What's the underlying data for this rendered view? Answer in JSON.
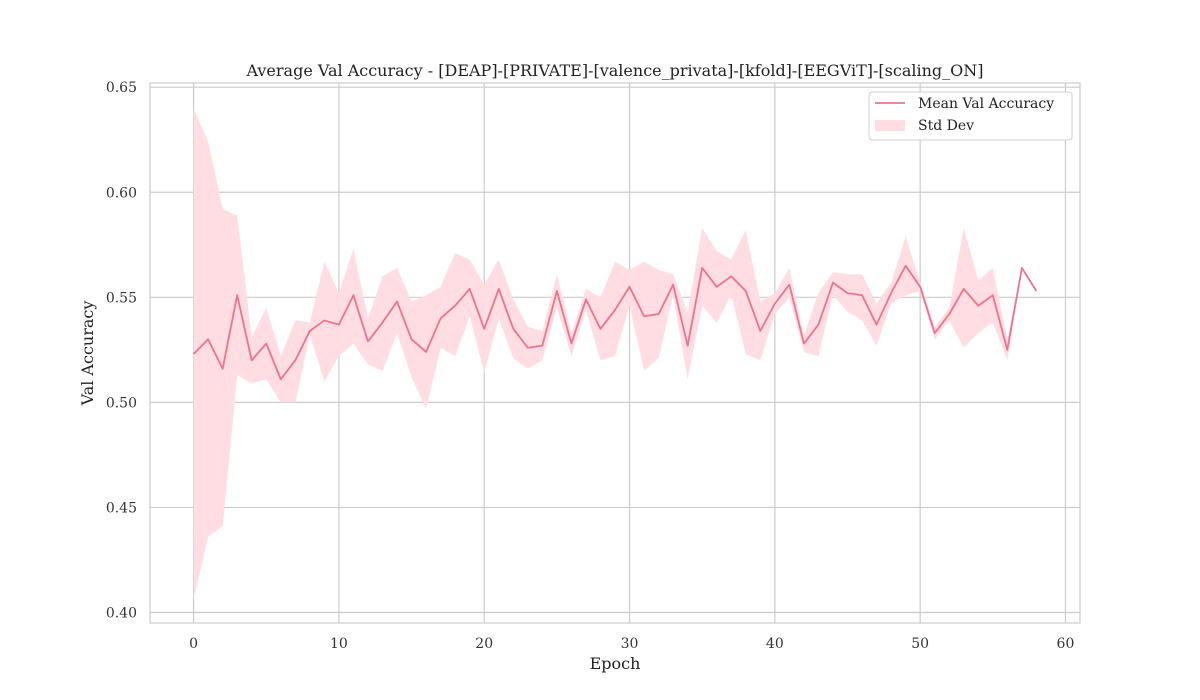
{
  "chart_data": {
    "type": "line",
    "title": "Average Val Accuracy - [DEAP]-[PRIVATE]-[valence_privata]-[kfold]-[EEGViT]-[scaling_ON]",
    "xlabel": "Epoch",
    "ylabel": "Val Accuracy",
    "xlim": [
      -3,
      61
    ],
    "ylim": [
      0.395,
      0.652
    ],
    "xticks": [
      0,
      10,
      20,
      30,
      40,
      50,
      60
    ],
    "yticks": [
      0.4,
      0.45,
      0.5,
      0.55,
      0.6,
      0.65
    ],
    "ytick_labels": [
      "0.40",
      "0.45",
      "0.50",
      "0.55",
      "0.60",
      "0.65"
    ],
    "grid": true,
    "legend_position": "top-right",
    "line_color": "#f0728c",
    "band_color": "#ffdde3",
    "series": [
      {
        "name": "Mean Val Accuracy",
        "x": [
          0,
          1,
          2,
          3,
          4,
          5,
          6,
          7,
          8,
          9,
          10,
          11,
          12,
          13,
          14,
          15,
          16,
          17,
          18,
          19,
          20,
          21,
          22,
          23,
          24,
          25,
          26,
          27,
          28,
          29,
          30,
          31,
          32,
          33,
          34,
          35,
          36,
          37,
          38,
          39,
          40,
          41,
          42,
          43,
          44,
          45,
          46,
          47,
          48,
          49,
          50,
          51,
          52,
          53,
          54,
          55,
          56,
          57,
          58
        ],
        "y": [
          0.523,
          0.53,
          0.516,
          0.551,
          0.52,
          0.528,
          0.511,
          0.52,
          0.534,
          0.539,
          0.537,
          0.551,
          0.529,
          0.538,
          0.548,
          0.53,
          0.524,
          0.54,
          0.546,
          0.554,
          0.535,
          0.554,
          0.535,
          0.526,
          0.527,
          0.553,
          0.528,
          0.549,
          0.535,
          0.544,
          0.555,
          0.541,
          0.542,
          0.556,
          0.527,
          0.564,
          0.555,
          0.56,
          0.553,
          0.534,
          0.547,
          0.556,
          0.528,
          0.537,
          0.557,
          0.552,
          0.551,
          0.537,
          0.552,
          0.565,
          0.555,
          0.533,
          0.542,
          0.554,
          0.546,
          0.551,
          0.525,
          0.564,
          0.553
        ]
      }
    ],
    "band": {
      "name": "Std Dev",
      "lower": [
        0.406,
        0.436,
        0.441,
        0.513,
        0.509,
        0.511,
        0.5,
        0.5,
        0.532,
        0.51,
        0.522,
        0.528,
        0.518,
        0.515,
        0.533,
        0.512,
        0.497,
        0.526,
        0.522,
        0.541,
        0.514,
        0.54,
        0.521,
        0.516,
        0.52,
        0.545,
        0.522,
        0.544,
        0.52,
        0.522,
        0.546,
        0.515,
        0.521,
        0.551,
        0.511,
        0.546,
        0.538,
        0.551,
        0.523,
        0.52,
        0.542,
        0.55,
        0.524,
        0.522,
        0.551,
        0.543,
        0.539,
        0.527,
        0.547,
        0.551,
        0.553,
        0.53,
        0.539,
        0.526,
        0.533,
        0.538,
        0.52,
        0.564,
        0.553
      ],
      "upper": [
        0.64,
        0.624,
        0.592,
        0.589,
        0.531,
        0.545,
        0.522,
        0.539,
        0.538,
        0.567,
        0.552,
        0.573,
        0.54,
        0.56,
        0.564,
        0.548,
        0.551,
        0.555,
        0.571,
        0.568,
        0.556,
        0.568,
        0.549,
        0.536,
        0.534,
        0.561,
        0.533,
        0.554,
        0.55,
        0.567,
        0.563,
        0.567,
        0.563,
        0.561,
        0.543,
        0.583,
        0.572,
        0.568,
        0.582,
        0.548,
        0.552,
        0.564,
        0.532,
        0.552,
        0.562,
        0.561,
        0.561,
        0.547,
        0.557,
        0.579,
        0.557,
        0.536,
        0.545,
        0.583,
        0.558,
        0.564,
        0.53,
        0.564,
        0.553
      ]
    }
  }
}
